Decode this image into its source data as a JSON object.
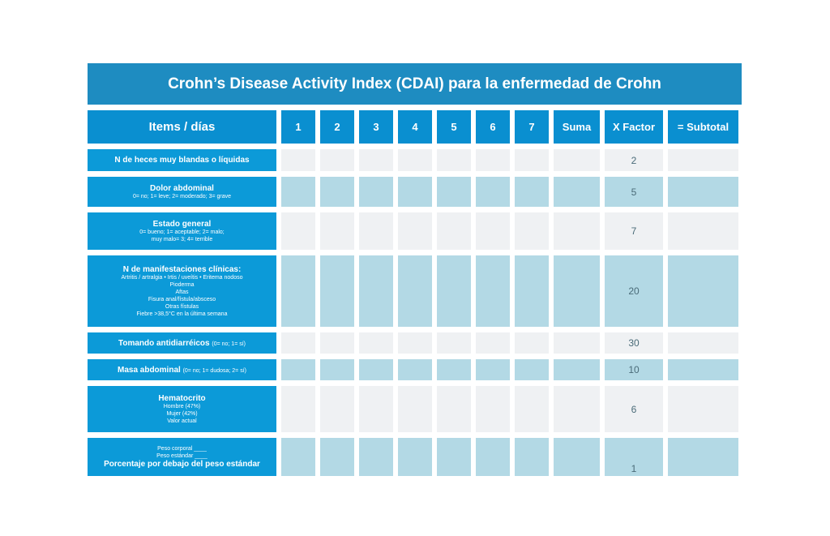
{
  "title": "Crohn’s Disease Activity Index (CDAI) para la enfermedad de Crohn",
  "header": {
    "items": "Items / días",
    "days": [
      "1",
      "2",
      "3",
      "4",
      "5",
      "6",
      "7"
    ],
    "suma": "Suma",
    "factor": "X Factor",
    "subtotal": "= Subtotal"
  },
  "rows": [
    {
      "main": "N de heces muy blandas o líquidas",
      "factor": "2"
    },
    {
      "main": "Dolor abdominal",
      "sub": [
        "0= no; 1= leve; 2= moderado; 3= grave"
      ],
      "factor": "5"
    },
    {
      "main": "Estado general",
      "sub": [
        "0= bueno; 1= aceptable; 2= malo;",
        "muy malo= 3; 4= terrible"
      ],
      "factor": "7"
    },
    {
      "main": "N de manifestaciones clínicas:",
      "sub": [
        "Artritis / artralgia • Irtis / uveítis • Eritema nodoso",
        "Pioderma",
        "Aftas",
        "Fisura anal/fístula/absceso",
        "Otras fístulas",
        "Fiebre >38,5°C en la última semana"
      ],
      "factor": "20"
    },
    {
      "main": "Tomando antidiarréicos",
      "inline": "(0= no; 1= sí)",
      "factor": "30"
    },
    {
      "main": "Masa abdominal",
      "inline": "(0= no; 1= dudosa; 2= sí)",
      "factor": "10"
    },
    {
      "main": "Hematocrito",
      "sub": [
        "Hombre (47%)",
        "Mujer (42%)",
        "Valor actual"
      ],
      "factor": "6"
    },
    {
      "pre": [
        "Peso corporal ____",
        "Peso estándar ____"
      ],
      "main": "Porcentaje por debajo del peso estándar",
      "factor": "1"
    }
  ]
}
